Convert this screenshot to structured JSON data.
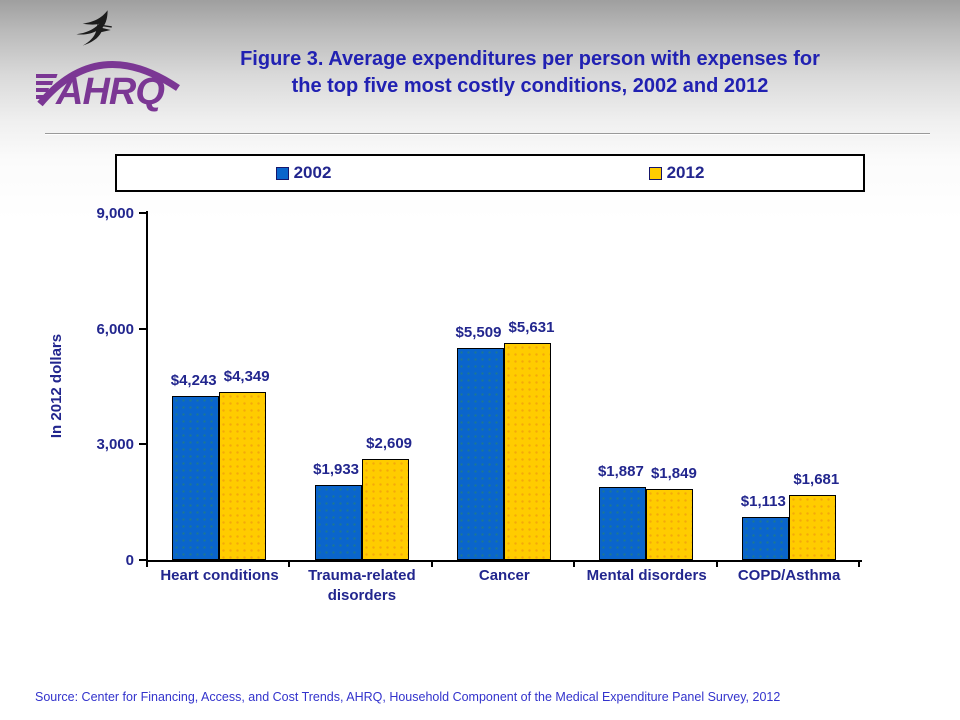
{
  "slide": {
    "title_line1": "Figure 3. Average expenditures per person with expenses for",
    "title_line2": "the top five most costly conditions, 2002 and 2012",
    "title_color": "#2121b2"
  },
  "logo": {
    "org": "AHRQ",
    "purple": "#7b3794",
    "eagle_icon": "hhs-eagle-icon"
  },
  "legend": {
    "items": [
      {
        "label": "2002",
        "color": "#0a65cc"
      },
      {
        "label": "2012",
        "color": "#ffcc00"
      }
    ]
  },
  "chart_data": {
    "type": "bar",
    "title": "Figure 3. Average expenditures per person with expenses for the top five most costly conditions, 2002 and 2012",
    "categories": [
      "Heart conditions",
      "Trauma-related disorders",
      "Cancer",
      "Mental disorders",
      "COPD/Asthma"
    ],
    "series": [
      {
        "name": "2002",
        "color": "#0a65cc",
        "values": [
          4243,
          1933,
          5509,
          1887,
          1113
        ],
        "labels": [
          "$4,243",
          "$1,933",
          "$5,509",
          "$1,887",
          "$1,113"
        ]
      },
      {
        "name": "2012",
        "color": "#ffcc00",
        "values": [
          4349,
          2609,
          5631,
          1849,
          1681
        ],
        "labels": [
          "$4,349",
          "$2,609",
          "$5,631",
          "$1,849",
          "$1,681"
        ]
      }
    ],
    "xlabel": "",
    "ylabel": "In 2012 dollars",
    "ylim": [
      0,
      9000
    ],
    "yticks": [
      0,
      3000,
      6000,
      9000
    ],
    "ytick_labels": [
      "0",
      "3,000",
      "6,000",
      "9,000"
    ],
    "grid": false,
    "legend_position": "top"
  },
  "source": "Source: Center for Financing, Access, and Cost Trends, AHRQ, Household Component of the Medical Expenditure Panel Survey,  2012",
  "chart_text_color": "#22268e"
}
